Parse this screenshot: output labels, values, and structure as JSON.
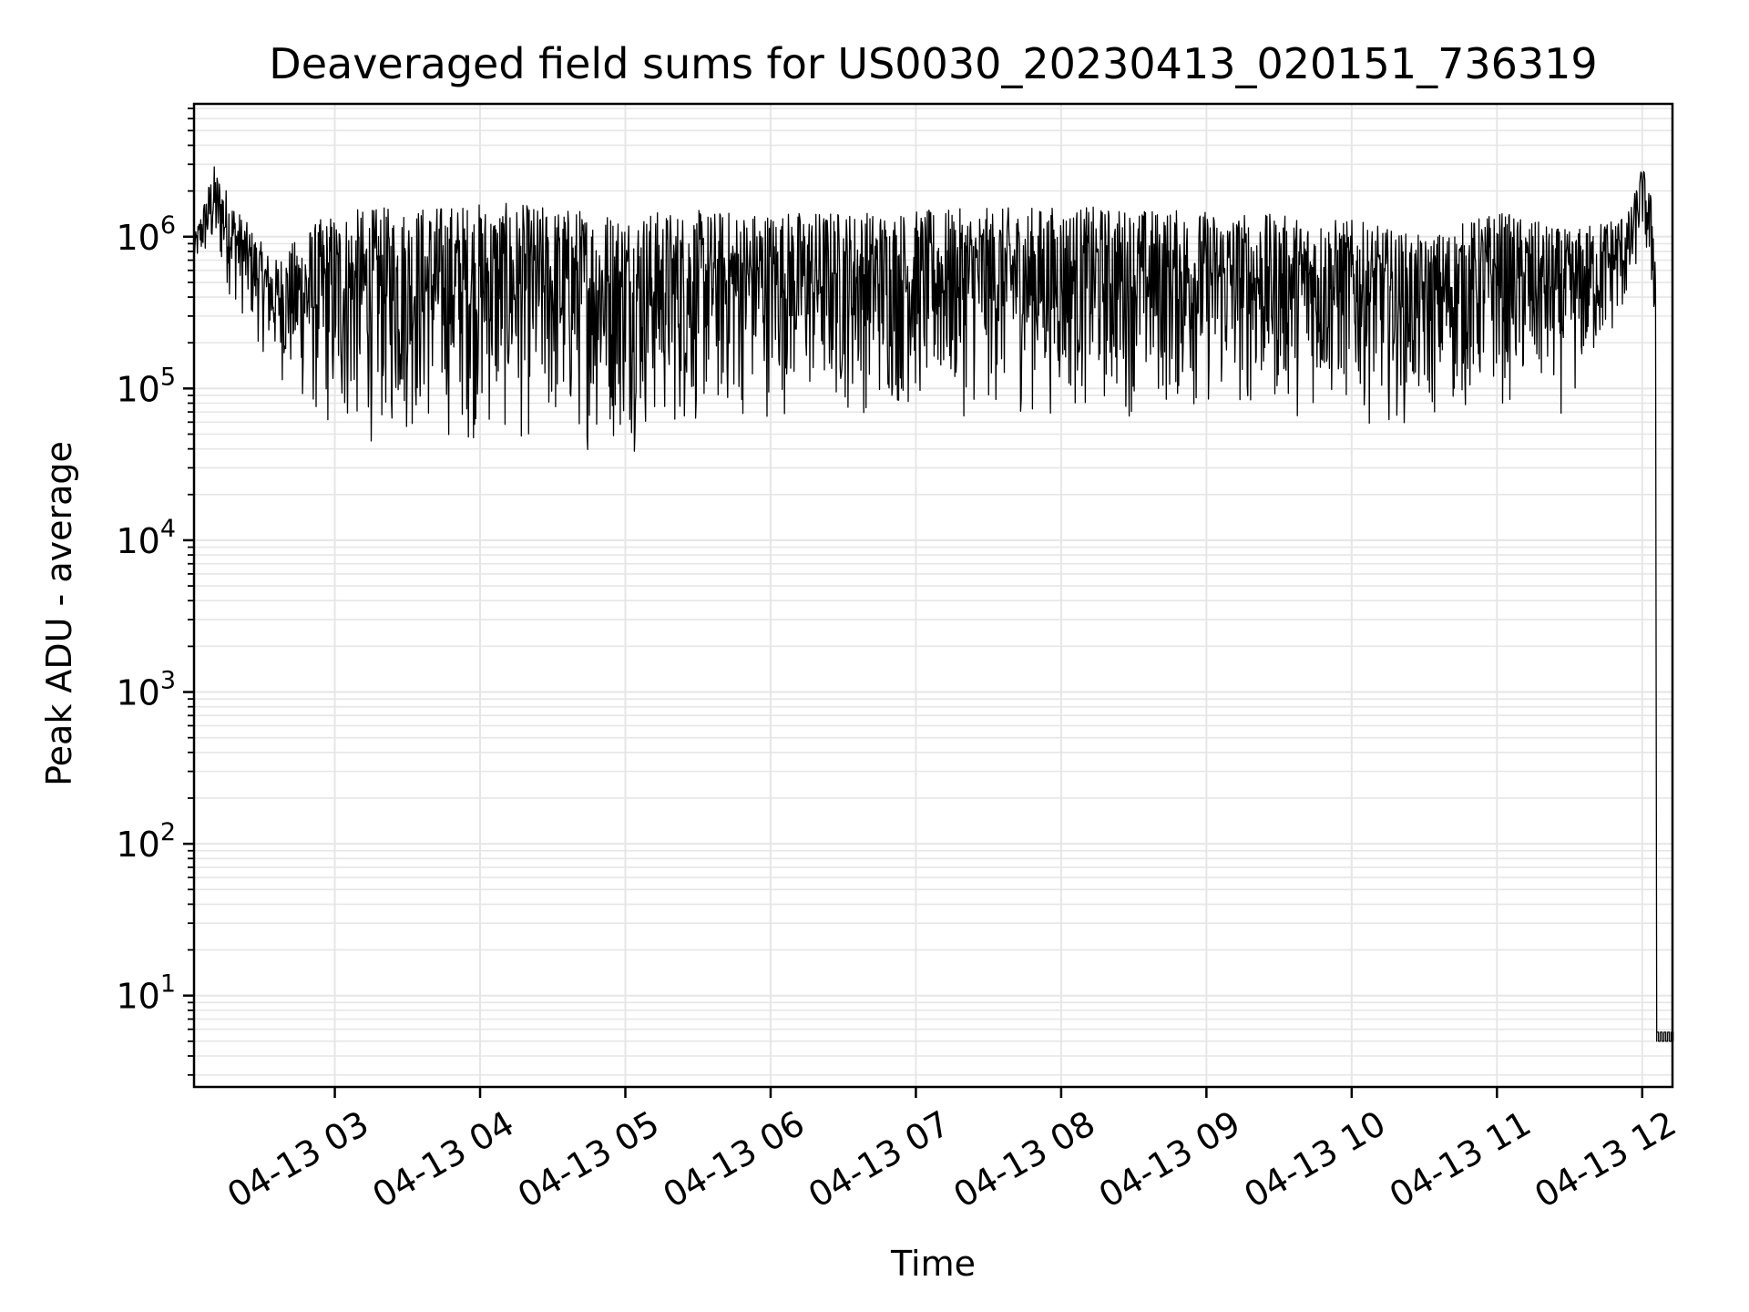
{
  "chart_data": {
    "type": "line",
    "title": "Deaveraged field sums for US0030_20230413_020151_736319",
    "xlabel": "Time",
    "ylabel": "Peak ADU - average",
    "yscale": "log",
    "ylim": [
      2.5,
      7500000
    ],
    "xlim": [
      "2023-04-13 02:01:51",
      "2023-04-13 12:12:30"
    ],
    "grid": true,
    "line_color": "#000000",
    "grid_color": "#e6e6e6",
    "x_ticks": [
      "04-13 03",
      "04-13 04",
      "04-13 05",
      "04-13 06",
      "04-13 07",
      "04-13 08",
      "04-13 09",
      "04-13 10",
      "04-13 11",
      "04-13 12"
    ],
    "y_ticks": [
      {
        "base": "10",
        "exp": "1",
        "value": 10
      },
      {
        "base": "10",
        "exp": "2",
        "value": 100
      },
      {
        "base": "10",
        "exp": "3",
        "value": 1000
      },
      {
        "base": "10",
        "exp": "4",
        "value": 10000
      },
      {
        "base": "10",
        "exp": "5",
        "value": 100000
      },
      {
        "base": "10",
        "exp": "6",
        "value": 1000000
      }
    ],
    "envelope": {
      "description_of_series": "dense oscillating signal; min/max bands by time",
      "times": [
        "2023-04-13 02:02",
        "2023-04-13 02:10",
        "2023-04-13 02:20",
        "2023-04-13 02:35",
        "2023-04-13 02:50",
        "2023-04-13 03:00",
        "2023-04-13 03:30",
        "2023-04-13 04:00",
        "2023-04-13 04:30",
        "2023-04-13 05:00",
        "2023-04-13 05:30",
        "2023-04-13 06:00",
        "2023-04-13 07:00",
        "2023-04-13 08:00",
        "2023-04-13 09:00",
        "2023-04-13 10:00",
        "2023-04-13 10:30",
        "2023-04-13 11:00",
        "2023-04-13 11:30",
        "2023-04-13 11:55",
        "2023-04-13 12:00",
        "2023-04-13 12:05",
        "2023-04-13 12:12"
      ],
      "low": [
        600000,
        600000,
        300000,
        120000,
        50000,
        35000,
        40000,
        38000,
        35000,
        35000,
        45000,
        60000,
        60000,
        60000,
        60000,
        60000,
        50000,
        70000,
        60000,
        300000,
        1000000,
        200000,
        5
      ],
      "high": [
        1000000,
        3000000,
        1500000,
        700000,
        1200000,
        1500000,
        1600000,
        1700000,
        1600000,
        1500000,
        1500000,
        1500000,
        1500000,
        1600000,
        1500000,
        1300000,
        1000000,
        1500000,
        1100000,
        1500000,
        3000000,
        1600000,
        5
      ]
    }
  }
}
